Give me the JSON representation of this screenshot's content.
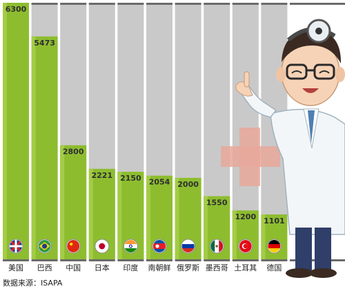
{
  "chart_data": {
    "type": "bar",
    "categories": [
      "美国",
      "巴西",
      "中国",
      "日本",
      "印度",
      "南朝鲜",
      "俄罗斯",
      "墨西哥",
      "土耳其",
      "德国"
    ],
    "values": [
      6300,
      5473,
      2800,
      2221,
      2150,
      2054,
      2000,
      1550,
      1200,
      1101
    ],
    "value_labels": [
      "6300",
      "5473",
      "2800",
      "2221",
      "2150",
      "2054",
      "2000",
      "1550",
      "1200",
      "1101"
    ],
    "ylim": [
      0,
      6300
    ],
    "grid": false,
    "source": "数据来源：ISAPA",
    "flags": [
      "us-australia-flag-icon",
      "brazil-flag-icon",
      "china-flag-icon",
      "japan-flag-icon",
      "india-flag-icon",
      "north-korea-flag-icon",
      "russia-flag-icon",
      "mexico-flag-icon",
      "turkey-flag-icon",
      "germany-flag-icon"
    ],
    "colors": {
      "bar": "#8dbd2f",
      "bar_light": "#a9cf4c",
      "track": "#c9c9c9",
      "cap": "#6a6a6a"
    }
  }
}
